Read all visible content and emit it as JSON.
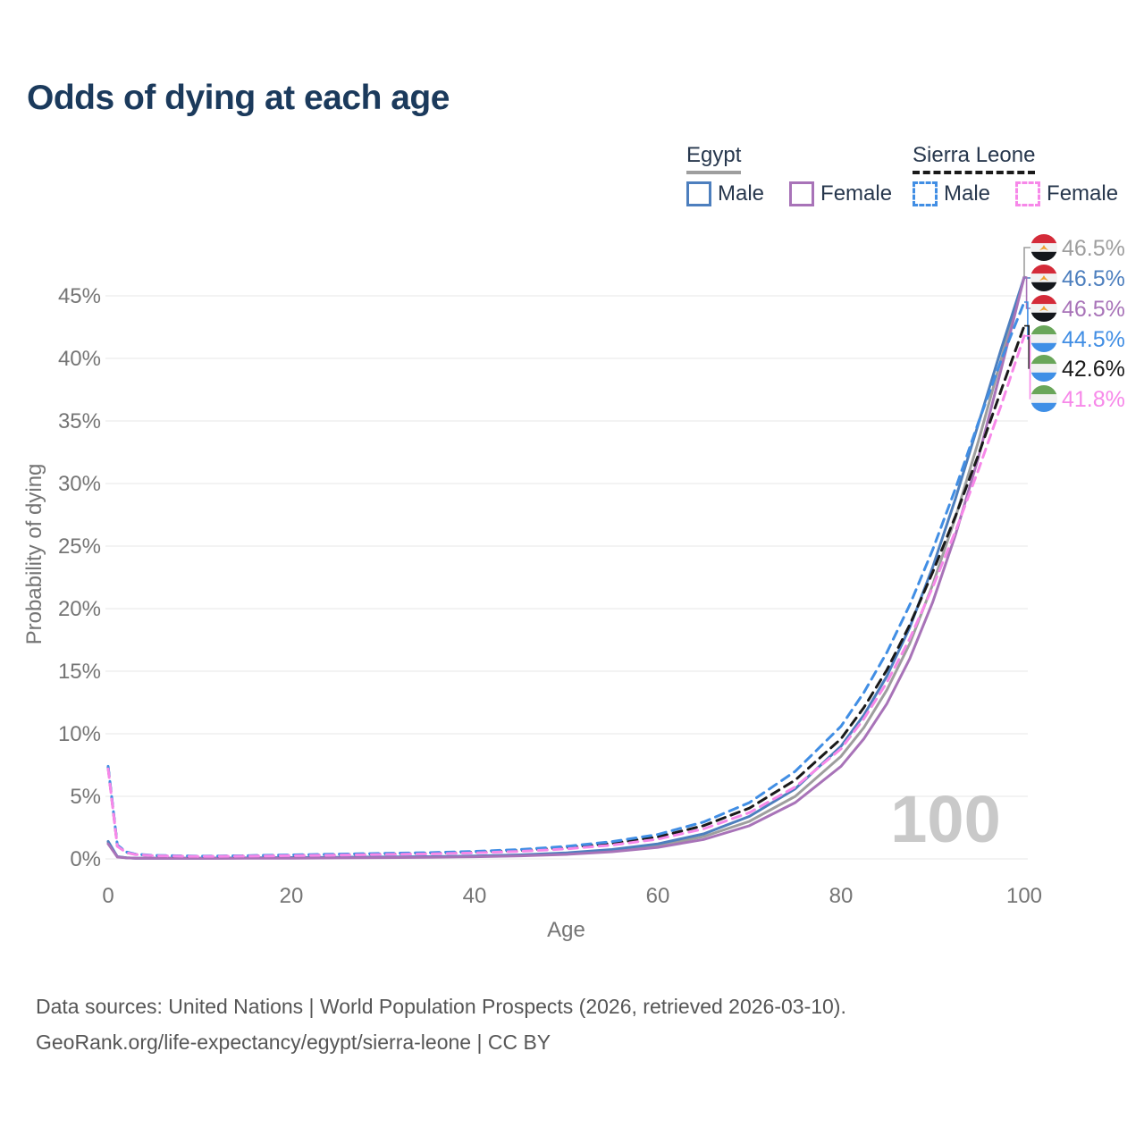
{
  "title": "Odds of dying at each age",
  "legend": {
    "egypt": {
      "label": "Egypt",
      "male": "Male",
      "female": "Female"
    },
    "sierra_leone": {
      "label": "Sierra Leone",
      "male": "Male",
      "female": "Female"
    }
  },
  "colors": {
    "egypt_group": "#9e9e9e",
    "sierra_leone_group": "#1a1a1a",
    "egypt_male": "#4d7fbe",
    "egypt_female": "#a873b8",
    "egypt_both": "#9e9e9e",
    "sierra_leone_male": "#418ee4",
    "sierra_leone_female": "#f788e9",
    "sierra_leone_both": "#1a1a1a",
    "title_text": "#1b3a5c",
    "axis_text": "#757575",
    "gridline": "#ececec",
    "watermark_text": "#c9c9c9",
    "footer_text": "#565656",
    "flag_egypt": [
      "#d42b39",
      "#f1f1f1",
      "#14171c"
    ],
    "flag_egypt_eagle": "#f0a030",
    "flag_sierra_leone": [
      "#69a65a",
      "#f1f1f1",
      "#3f8fe6"
    ]
  },
  "chart_data": {
    "type": "line",
    "title": "Odds of dying at each age",
    "xlabel": "Age",
    "ylabel": "Probability of dying",
    "x_ticks": [
      0,
      20,
      40,
      60,
      80,
      100
    ],
    "y_ticks_percent": [
      0,
      5,
      10,
      15,
      20,
      25,
      30,
      35,
      40,
      45
    ],
    "xlim": [
      0,
      100
    ],
    "ylim_percent": [
      0,
      48
    ],
    "grid": "horizontal-only",
    "legend_position": "top-right",
    "watermark": "100",
    "x": [
      0,
      1,
      2,
      3,
      5,
      10,
      15,
      20,
      25,
      30,
      35,
      40,
      45,
      50,
      55,
      60,
      65,
      70,
      75,
      80,
      82.5,
      85,
      87.5,
      90,
      92.5,
      95,
      97.5,
      100
    ],
    "series": [
      {
        "name": "Egypt Both sexes",
        "country": "Egypt",
        "sex": "both",
        "style": "solid",
        "color": "#9e9e9e",
        "end_label": "46.5%",
        "values": [
          1.3,
          0.17,
          0.09,
          0.06,
          0.05,
          0.05,
          0.07,
          0.09,
          0.11,
          0.13,
          0.16,
          0.2,
          0.28,
          0.42,
          0.66,
          1.06,
          1.78,
          3.0,
          5.0,
          8.2,
          10.5,
          13.5,
          17.2,
          21.9,
          27.3,
          33.4,
          40.0,
          46.5
        ]
      },
      {
        "name": "Egypt Male",
        "country": "Egypt",
        "sex": "male",
        "style": "solid",
        "color": "#4d7fbe",
        "end_label": "46.5%",
        "values": [
          1.4,
          0.18,
          0.09,
          0.06,
          0.05,
          0.05,
          0.08,
          0.11,
          0.13,
          0.15,
          0.18,
          0.23,
          0.32,
          0.48,
          0.75,
          1.2,
          2.0,
          3.4,
          5.6,
          9.0,
          11.5,
          14.6,
          18.5,
          23.3,
          28.8,
          34.8,
          40.8,
          46.5
        ]
      },
      {
        "name": "Egypt Female",
        "country": "Egypt",
        "sex": "female",
        "style": "solid",
        "color": "#a873b8",
        "end_label": "46.5%",
        "values": [
          1.2,
          0.15,
          0.08,
          0.05,
          0.04,
          0.04,
          0.05,
          0.06,
          0.08,
          0.1,
          0.13,
          0.17,
          0.24,
          0.36,
          0.57,
          0.92,
          1.55,
          2.65,
          4.5,
          7.4,
          9.6,
          12.4,
          16.0,
          20.5,
          25.9,
          32.1,
          39.2,
          46.5
        ]
      },
      {
        "name": "Sierra Leone Both sexes",
        "country": "Sierra Leone",
        "sex": "both",
        "style": "dashed",
        "color": "#1a1a1a",
        "end_label": "42.6%",
        "values": [
          7.3,
          1.05,
          0.52,
          0.36,
          0.26,
          0.2,
          0.24,
          0.29,
          0.34,
          0.39,
          0.45,
          0.54,
          0.68,
          0.9,
          1.24,
          1.76,
          2.66,
          4.06,
          6.3,
          9.6,
          12.1,
          15.1,
          18.7,
          22.9,
          27.4,
          32.3,
          37.5,
          42.6
        ]
      },
      {
        "name": "Sierra Leone Male",
        "country": "Sierra Leone",
        "sex": "male",
        "style": "dashed",
        "color": "#418ee4",
        "end_label": "44.5%",
        "values": [
          7.4,
          1.1,
          0.55,
          0.38,
          0.28,
          0.22,
          0.26,
          0.32,
          0.38,
          0.44,
          0.5,
          0.6,
          0.75,
          1.0,
          1.38,
          1.95,
          2.95,
          4.5,
          7.0,
          10.6,
          13.3,
          16.5,
          20.3,
          24.7,
          29.6,
          34.9,
          39.9,
          44.5
        ]
      },
      {
        "name": "Sierra Leone Female",
        "country": "Sierra Leone",
        "sex": "female",
        "style": "dashed",
        "color": "#f788e9",
        "end_label": "41.8%",
        "values": [
          7.2,
          1.0,
          0.5,
          0.34,
          0.25,
          0.19,
          0.22,
          0.26,
          0.3,
          0.35,
          0.4,
          0.48,
          0.6,
          0.8,
          1.1,
          1.58,
          2.4,
          3.7,
          5.75,
          8.8,
          11.2,
          14.1,
          17.6,
          21.7,
          26.2,
          31.1,
          36.3,
          41.8
        ]
      }
    ],
    "end_labels": [
      {
        "flag": "egypt",
        "value": "46.5%",
        "color": "#9e9e9e",
        "series": "Egypt Both sexes"
      },
      {
        "flag": "egypt",
        "value": "46.5%",
        "color": "#4d7fbe",
        "series": "Egypt Male"
      },
      {
        "flag": "egypt",
        "value": "46.5%",
        "color": "#a873b8",
        "series": "Egypt Female"
      },
      {
        "flag": "sierra_leone",
        "value": "44.5%",
        "color": "#418ee4",
        "series": "Sierra Leone Male"
      },
      {
        "flag": "sierra_leone",
        "value": "42.6%",
        "color": "#1a1a1a",
        "series": "Sierra Leone Both sexes"
      },
      {
        "flag": "sierra_leone",
        "value": "41.8%",
        "color": "#f788e9",
        "series": "Sierra Leone Female"
      }
    ]
  },
  "footer": {
    "line1": "Data sources: United Nations | World Population Prospects (2026, retrieved 2026-03-10).",
    "line2": "GeoRank.org/life-expectancy/egypt/sierra-leone | CC BY"
  }
}
